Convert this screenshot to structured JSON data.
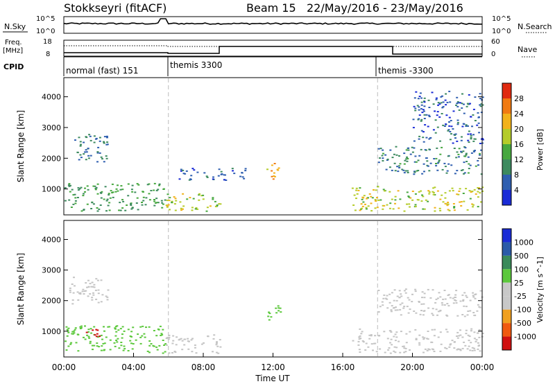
{
  "header": {
    "title": "Stokkseyri (fitACF)",
    "beam_label": "Beam 15",
    "date_range": "22/May/2016 - 23/May/2016"
  },
  "top_panels": {
    "nsky_label": "N.Sky",
    "nsky_ticks": [
      "10^5",
      "10^0"
    ],
    "nsearch_label": "N.Search",
    "nsearch_ticks": [
      "10^5",
      "10^0"
    ],
    "freq_label_1": "Freq.",
    "freq_label_2": "[MHz]",
    "freq_ticks": [
      "18",
      "8"
    ],
    "nave_label": "Nave",
    "nave_ticks": [
      "60",
      "0"
    ],
    "cpid_label": "CPID",
    "cpid_segments": [
      {
        "label": "normal (fast) 151",
        "start_hour": 0
      },
      {
        "label": "themis 3300",
        "start_hour": 6
      },
      {
        "label": "themis -3300",
        "start_hour": 18
      }
    ]
  },
  "axes": {
    "ylabel": "Slant Range [km]",
    "xlabel": "Time UT",
    "y_ticks": [
      "1000",
      "2000",
      "3000",
      "4000"
    ],
    "x_ticks": [
      "00:00",
      "04:00",
      "08:00",
      "12:00",
      "16:00",
      "20:00",
      "00:00"
    ]
  },
  "colors": {
    "power_scale": [
      "#1a2bd6",
      "#2f5fb0",
      "#3d8a5f",
      "#47a83f",
      "#b5cc2a",
      "#f2b21b",
      "#f07a12",
      "#e02a10"
    ],
    "velocity_scale": [
      "#d01010",
      "#f05a10",
      "#f0a020",
      "#c8c8c8",
      "#c8c8c8",
      "#5cc83c",
      "#3a8a5a",
      "#2a5aa8",
      "#1a2bd6"
    ],
    "ground_scatter": "#c4c4c4"
  },
  "chart_data": [
    {
      "type": "heatmap",
      "name": "power",
      "x_range_hours": [
        0,
        24
      ],
      "ylim": [
        180,
        4600
      ],
      "colorbar_label": "Power [dB]",
      "colorbar_ticks": [
        "4",
        "8",
        "12",
        "16",
        "20",
        "24",
        "28"
      ],
      "colorbar_range": [
        0,
        32
      ],
      "scatter_regions": [
        {
          "t": [
            0,
            5.8
          ],
          "r": [
            300,
            1200
          ],
          "value": 12
        },
        {
          "t": [
            0.3,
            2.5
          ],
          "r": [
            1900,
            2800
          ],
          "value": 8
        },
        {
          "t": [
            5.8,
            9
          ],
          "r": [
            300,
            900
          ],
          "value": 18
        },
        {
          "t": [
            6.5,
            10.5
          ],
          "r": [
            1300,
            1700
          ],
          "value": 6
        },
        {
          "t": [
            11.6,
            12.4
          ],
          "r": [
            1300,
            1900
          ],
          "value": 22
        },
        {
          "t": [
            16.5,
            24
          ],
          "r": [
            300,
            1100
          ],
          "value": 18
        },
        {
          "t": [
            18,
            24
          ],
          "r": [
            1500,
            2400
          ],
          "value": 9
        },
        {
          "t": [
            20,
            24
          ],
          "r": [
            2500,
            4200
          ],
          "value": 6
        }
      ]
    },
    {
      "type": "heatmap",
      "name": "velocity",
      "x_range_hours": [
        0,
        24
      ],
      "ylim": [
        180,
        4600
      ],
      "colorbar_label": "Velocity [m s^-1]",
      "colorbar_ticks": [
        "1000",
        "500",
        "100",
        "25",
        "-25",
        "-100",
        "-500",
        "-1000"
      ],
      "scatter_regions": [
        {
          "t": [
            0,
            5.8
          ],
          "r": [
            300,
            1200
          ],
          "value": 60
        },
        {
          "t": [
            1.2,
            2.0
          ],
          "r": [
            800,
            1200
          ],
          "value": -700
        },
        {
          "t": [
            0.3,
            2.5
          ],
          "r": [
            1900,
            2800
          ],
          "value": 0
        },
        {
          "t": [
            5.8,
            9
          ],
          "r": [
            300,
            900
          ],
          "value": 0
        },
        {
          "t": [
            11.6,
            12.4
          ],
          "r": [
            1300,
            1900
          ],
          "value": 150
        },
        {
          "t": [
            16.5,
            24
          ],
          "r": [
            300,
            1100
          ],
          "value": 0
        },
        {
          "t": [
            18,
            24
          ],
          "r": [
            1500,
            2400
          ],
          "value": 0
        }
      ]
    }
  ]
}
